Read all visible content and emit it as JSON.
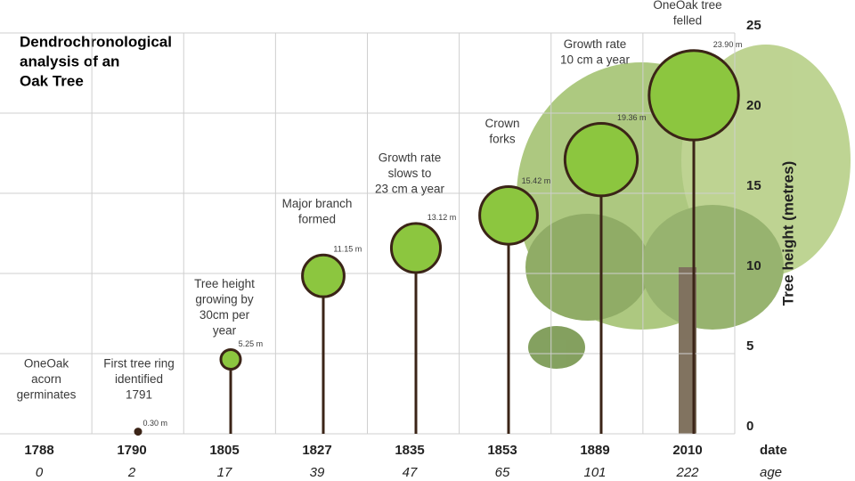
{
  "chart_data": {
    "type": "lollipop",
    "title": [
      "Dendrochronological",
      "analysis of an",
      "Oak Tree"
    ],
    "categories": [
      "1788",
      "1790",
      "1805",
      "1827",
      "1835",
      "1853",
      "1889",
      "2010"
    ],
    "ages": [
      "0",
      "2",
      "17",
      "39",
      "47",
      "65",
      "101",
      "222"
    ],
    "values": [
      null,
      0.3,
      5.25,
      11.15,
      13.12,
      15.42,
      19.36,
      23.9
    ],
    "value_labels": [
      null,
      "0.30 m",
      "5.25 m",
      "11.15 m",
      "13.12 m",
      "15.42 m",
      "19.36 m",
      "23.90 m"
    ],
    "annotations": [
      [
        "OneOak",
        "acorn",
        "germinates"
      ],
      [
        "First tree ring",
        "identified",
        "1791"
      ],
      [
        "Tree height",
        "growing by",
        "30cm per",
        "year"
      ],
      [
        "Major branch",
        "formed"
      ],
      [
        "Growth rate",
        "slows to",
        "23 cm a year"
      ],
      [
        "Crown",
        "forks"
      ],
      [
        "Growth rate",
        "10 cm a year"
      ],
      [
        "OneOak tree",
        "felled"
      ]
    ],
    "ylabel": "Tree height (metres)",
    "xlabel": "date",
    "age_label": "age",
    "ylim": [
      0,
      25
    ],
    "yticks": [
      0,
      5,
      10,
      15,
      20,
      25
    ],
    "grid": true,
    "color": "#8cc63f",
    "stem_color": "#3b2417"
  }
}
